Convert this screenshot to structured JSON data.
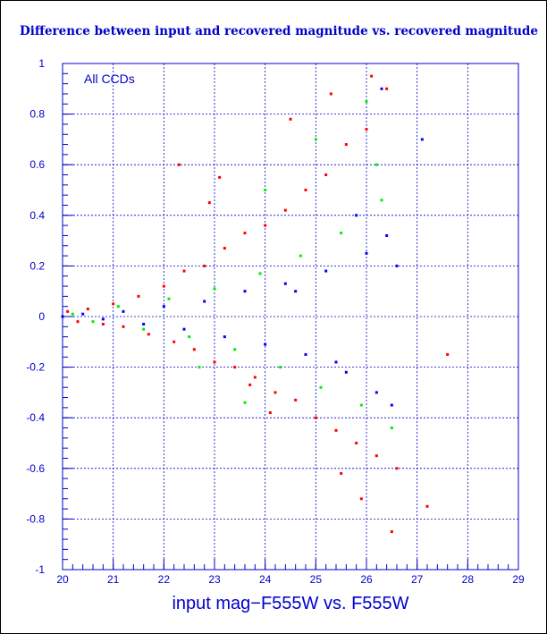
{
  "chart_data": {
    "type": "scatter",
    "title": "Difference between input and recovered magnitude vs. recovered magnitude",
    "xlabel": "input mag−F555W vs. F555W",
    "ylabel": "",
    "annotation": "All CCDs",
    "xlim": [
      20,
      29
    ],
    "ylim": [
      -1,
      1
    ],
    "x_ticks": [
      "20",
      "21",
      "22",
      "23",
      "24",
      "25",
      "26",
      "27",
      "28",
      "29"
    ],
    "y_ticks": [
      "1",
      "0.8",
      "0.6",
      "0.4",
      "0.2",
      "0",
      "-0.2",
      "-0.4",
      "-0.6",
      "-0.8",
      "-1"
    ],
    "grid": true,
    "colors": {
      "axis": "#0000cc",
      "grid": "#0000cc",
      "red": "#ff0000",
      "green": "#00ee00",
      "blue": "#0000ff"
    },
    "series": [
      {
        "color": "red",
        "x": [
          20.1,
          20.3,
          20.5,
          20.8,
          21.0,
          21.2,
          21.5,
          21.7,
          22.0,
          22.2,
          22.4,
          22.6,
          22.8,
          23.0,
          23.2,
          23.4,
          23.6,
          23.8,
          24.0,
          24.2,
          24.4,
          24.6,
          24.8,
          25.0,
          25.2,
          25.4,
          25.6,
          25.8,
          26.0,
          26.2,
          26.4,
          26.6,
          22.3,
          23.1,
          23.7,
          24.5,
          25.3,
          25.9,
          26.1,
          26.5,
          27.2,
          27.6,
          22.9,
          24.1,
          25.5
        ],
        "y": [
          0.02,
          -0.02,
          0.03,
          -0.03,
          0.05,
          -0.04,
          0.08,
          -0.07,
          0.12,
          -0.1,
          0.18,
          -0.13,
          0.2,
          -0.18,
          0.27,
          -0.2,
          0.33,
          -0.24,
          0.36,
          -0.3,
          0.42,
          -0.33,
          0.5,
          -0.4,
          0.56,
          -0.45,
          0.68,
          -0.5,
          0.74,
          -0.55,
          0.9,
          -0.6,
          0.6,
          0.55,
          -0.27,
          0.78,
          0.88,
          -0.72,
          0.95,
          -0.85,
          -0.75,
          -0.15,
          0.45,
          -0.38,
          -0.62
        ]
      },
      {
        "color": "green",
        "x": [
          20.2,
          20.6,
          21.1,
          21.6,
          22.1,
          22.5,
          23.0,
          23.4,
          23.9,
          24.3,
          24.7,
          25.1,
          25.5,
          25.9,
          26.3,
          26.5,
          24.0,
          25.0,
          26.0,
          26.2,
          22.7,
          23.6
        ],
        "y": [
          0.01,
          -0.02,
          0.04,
          -0.05,
          0.07,
          -0.08,
          0.11,
          -0.13,
          0.17,
          -0.2,
          0.24,
          -0.28,
          0.33,
          -0.35,
          0.46,
          -0.44,
          0.5,
          0.7,
          0.85,
          0.6,
          -0.2,
          -0.34
        ]
      },
      {
        "color": "blue",
        "x": [
          20.0,
          20.4,
          20.8,
          21.2,
          21.6,
          22.0,
          22.4,
          22.8,
          23.2,
          23.6,
          24.0,
          24.4,
          24.8,
          25.2,
          25.6,
          26.0,
          26.2,
          26.4,
          26.5,
          26.6,
          24.6,
          25.4,
          25.8,
          26.3,
          27.1
        ],
        "y": [
          0.0,
          0.01,
          -0.01,
          0.02,
          -0.03,
          0.04,
          -0.05,
          0.06,
          -0.08,
          0.1,
          -0.11,
          0.13,
          -0.15,
          0.18,
          -0.22,
          0.25,
          -0.3,
          0.32,
          -0.35,
          0.2,
          0.1,
          -0.18,
          0.4,
          0.9,
          0.7
        ]
      }
    ]
  }
}
